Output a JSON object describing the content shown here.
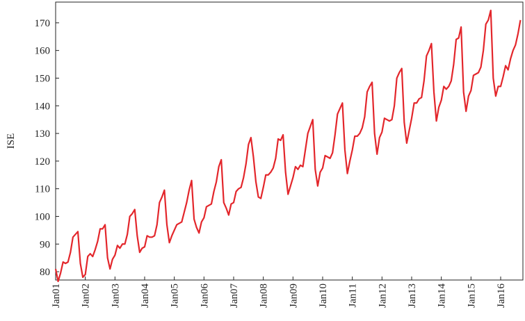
{
  "chart_data": {
    "type": "line",
    "ylabel": "ISE",
    "x": [
      "2001-01",
      "2001-02",
      "2001-03",
      "2001-04",
      "2001-05",
      "2001-06",
      "2001-07",
      "2001-08",
      "2001-09",
      "2001-10",
      "2001-11",
      "2001-12",
      "2002-01",
      "2002-02",
      "2002-03",
      "2002-04",
      "2002-05",
      "2002-06",
      "2002-07",
      "2002-08",
      "2002-09",
      "2002-10",
      "2002-11",
      "2002-12",
      "2003-01",
      "2003-02",
      "2003-03",
      "2003-04",
      "2003-05",
      "2003-06",
      "2003-07",
      "2003-08",
      "2003-09",
      "2003-10",
      "2003-11",
      "2003-12",
      "2004-01",
      "2004-02",
      "2004-03",
      "2004-04",
      "2004-05",
      "2004-06",
      "2004-07",
      "2004-08",
      "2004-09",
      "2004-10",
      "2004-11",
      "2004-12",
      "2005-01",
      "2005-02",
      "2005-03",
      "2005-04",
      "2005-05",
      "2005-06",
      "2005-07",
      "2005-08",
      "2005-09",
      "2005-10",
      "2005-11",
      "2005-12",
      "2006-01",
      "2006-02",
      "2006-03",
      "2006-04",
      "2006-05",
      "2006-06",
      "2006-07",
      "2006-08",
      "2006-09",
      "2006-10",
      "2006-11",
      "2006-12",
      "2007-01",
      "2007-02",
      "2007-03",
      "2007-04",
      "2007-05",
      "2007-06",
      "2007-07",
      "2007-08",
      "2007-09",
      "2007-10",
      "2007-11",
      "2007-12",
      "2008-01",
      "2008-02",
      "2008-03",
      "2008-04",
      "2008-05",
      "2008-06",
      "2008-07",
      "2008-08",
      "2008-09",
      "2008-10",
      "2008-11",
      "2008-12",
      "2009-01",
      "2009-02",
      "2009-03",
      "2009-04",
      "2009-05",
      "2009-06",
      "2009-07",
      "2009-08",
      "2009-09",
      "2009-10",
      "2009-11",
      "2009-12",
      "2010-01",
      "2010-02",
      "2010-03",
      "2010-04",
      "2010-05",
      "2010-06",
      "2010-07",
      "2010-08",
      "2010-09",
      "2010-10",
      "2010-11",
      "2010-12",
      "2011-01",
      "2011-02",
      "2011-03",
      "2011-04",
      "2011-05",
      "2011-06",
      "2011-07",
      "2011-08",
      "2011-09",
      "2011-10",
      "2011-11",
      "2011-12",
      "2012-01",
      "2012-02",
      "2012-03",
      "2012-04",
      "2012-05",
      "2012-06",
      "2012-07",
      "2012-08",
      "2012-09",
      "2012-10",
      "2012-11",
      "2012-12",
      "2013-01",
      "2013-02",
      "2013-03",
      "2013-04",
      "2013-05",
      "2013-06",
      "2013-07",
      "2013-08",
      "2013-09",
      "2013-10",
      "2013-11",
      "2013-12",
      "2014-01",
      "2014-02",
      "2014-03",
      "2014-04",
      "2014-05",
      "2014-06",
      "2014-07",
      "2014-08",
      "2014-09",
      "2014-10",
      "2014-11",
      "2014-12",
      "2015-01",
      "2015-02",
      "2015-03",
      "2015-04",
      "2015-05",
      "2015-06",
      "2015-07",
      "2015-08",
      "2015-09",
      "2015-10",
      "2015-11",
      "2015-12",
      "2016-01",
      "2016-02",
      "2016-03",
      "2016-04",
      "2016-05",
      "2016-06",
      "2016-07",
      "2016-08",
      "2016-09"
    ],
    "values": [
      81,
      76.5,
      79.5,
      83.5,
      83,
      83.5,
      87,
      92.5,
      93.5,
      94.5,
      83,
      78,
      79,
      85.5,
      86.5,
      85.5,
      88,
      91,
      95.5,
      95.5,
      97,
      85,
      81,
      84.5,
      86,
      89.5,
      88.5,
      90,
      90,
      93.5,
      100,
      101,
      102.5,
      93,
      87,
      88.5,
      89,
      93,
      92.5,
      92.5,
      93,
      97,
      105,
      107,
      109.5,
      97,
      90.5,
      93,
      95,
      97,
      97.5,
      98,
      101.5,
      105,
      109.5,
      113,
      99,
      96,
      94,
      98,
      99.5,
      103.5,
      104,
      104.5,
      109,
      112.5,
      118,
      120.5,
      105,
      103,
      100.5,
      104.5,
      105,
      109,
      110,
      110.5,
      114,
      119,
      126,
      128.5,
      121.5,
      112.5,
      107,
      106.5,
      110.5,
      115,
      115,
      116,
      117.5,
      121,
      128,
      127.5,
      129.5,
      116,
      108,
      111,
      114,
      118,
      117,
      118.5,
      118,
      124,
      130,
      132.5,
      135,
      117,
      111,
      116,
      117.5,
      122,
      121.5,
      121,
      123,
      129.5,
      137,
      139,
      141,
      124,
      115.5,
      120,
      124,
      129,
      129,
      130,
      132,
      136,
      145,
      147,
      148.5,
      130,
      122.5,
      128.5,
      130.5,
      135.5,
      135,
      134.5,
      135,
      140,
      150,
      152,
      153.5,
      134,
      126.5,
      131,
      135.5,
      141,
      141,
      142.5,
      143,
      149,
      158,
      160,
      162.5,
      145,
      134.5,
      139.5,
      142,
      147,
      146,
      147,
      149,
      155,
      164,
      164.5,
      168.5,
      145,
      138,
      143.5,
      145.5,
      151,
      151.5,
      152,
      154,
      160,
      169.5,
      171,
      174.5,
      150,
      143.5,
      147,
      147,
      150.5,
      154.5,
      153,
      157,
      160,
      162,
      166,
      171
    ],
    "color": "#e3262b",
    "xlim": [
      "2001-01",
      "2016-10"
    ],
    "xticks": [
      {
        "value": "2001-01",
        "label": "Jan01"
      },
      {
        "value": "2002-01",
        "label": "Jan02"
      },
      {
        "value": "2003-01",
        "label": "Jan03"
      },
      {
        "value": "2004-01",
        "label": "Jan04"
      },
      {
        "value": "2005-01",
        "label": "Jan05"
      },
      {
        "value": "2006-01",
        "label": "Jan06"
      },
      {
        "value": "2007-01",
        "label": "Jan07"
      },
      {
        "value": "2008-01",
        "label": "Jan08"
      },
      {
        "value": "2009-01",
        "label": "Jan09"
      },
      {
        "value": "2010-01",
        "label": "Jan10"
      },
      {
        "value": "2011-01",
        "label": "Jan11"
      },
      {
        "value": "2012-01",
        "label": "Jan12"
      },
      {
        "value": "2013-01",
        "label": "Jan13"
      },
      {
        "value": "2014-01",
        "label": "Jan14"
      },
      {
        "value": "2015-01",
        "label": "Jan15"
      },
      {
        "value": "2016-01",
        "label": "Jan16"
      }
    ],
    "ylim": [
      77,
      177.5
    ],
    "yticks": [
      80,
      90,
      100,
      110,
      120,
      130,
      140,
      150,
      160,
      170
    ]
  }
}
